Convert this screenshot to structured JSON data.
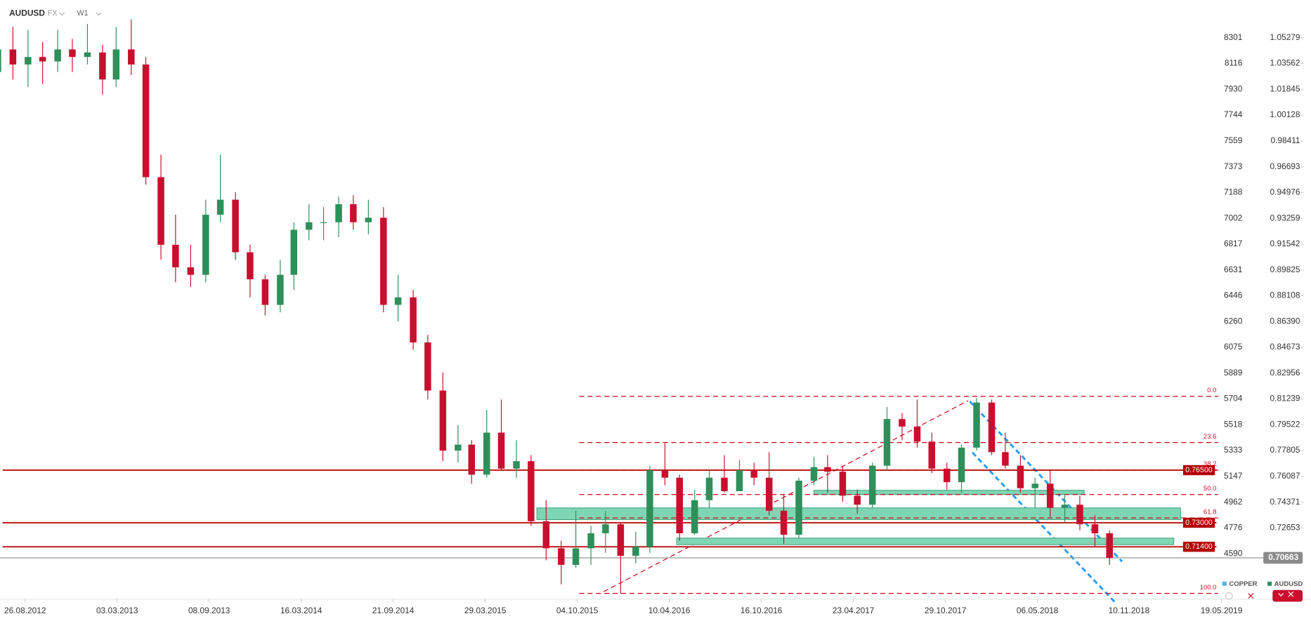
{
  "chart_data": {
    "type": "candlestick",
    "symbol": "AUDUSD",
    "market": "FX",
    "timeframe": "W1",
    "x": [
      "01.07.2012",
      "01.08.2012",
      "01.09.2012",
      "01.10.2012",
      "01.11.2012",
      "01.12.2012",
      "01.01.2013",
      "01.02.2013",
      "01.03.2013",
      "01.04.2013",
      "01.05.2013",
      "01.06.2013",
      "01.07.2013",
      "01.08.2013",
      "01.09.2013",
      "01.10.2013",
      "01.11.2013",
      "01.12.2013",
      "01.01.2014",
      "01.02.2014",
      "01.03.2014",
      "01.04.2014",
      "01.05.2014",
      "01.06.2014",
      "01.07.2014",
      "01.08.2014",
      "01.09.2014",
      "01.10.2014",
      "01.11.2014",
      "01.12.2014",
      "01.01.2015",
      "01.02.2015",
      "01.03.2015",
      "01.04.2015",
      "01.05.2015",
      "01.06.2015",
      "01.07.2015",
      "01.08.2015",
      "01.09.2015",
      "01.10.2015",
      "01.11.2015",
      "01.12.2015",
      "01.01.2016",
      "01.02.2016",
      "01.03.2016",
      "01.04.2016",
      "01.05.2016",
      "01.06.2016",
      "01.07.2016",
      "01.08.2016",
      "01.09.2016",
      "01.10.2016",
      "01.11.2016",
      "01.12.2016",
      "01.01.2017",
      "01.02.2017",
      "01.03.2017",
      "01.04.2017",
      "01.05.2017",
      "01.06.2017",
      "01.07.2017",
      "01.08.2017",
      "01.09.2017",
      "01.10.2017",
      "01.11.2017",
      "01.12.2017",
      "01.01.2018",
      "01.02.2018",
      "01.03.2018",
      "01.04.2018",
      "01.05.2018",
      "01.06.2018",
      "01.07.2018",
      "01.08.2018",
      "01.09.2018",
      "01.10.2018"
    ],
    "open": [
      1.03,
      1.045,
      1.035,
      1.04,
      1.037,
      1.045,
      1.04,
      1.043,
      1.025,
      1.045,
      1.035,
      0.96,
      0.915,
      0.9,
      0.895,
      0.935,
      0.945,
      0.91,
      0.892,
      0.875,
      0.895,
      0.925,
      0.93,
      0.93,
      0.942,
      0.93,
      0.933,
      0.875,
      0.88,
      0.85,
      0.818,
      0.778,
      0.782,
      0.762,
      0.79,
      0.766,
      0.771,
      0.731,
      0.713,
      0.702,
      0.713,
      0.723,
      0.729,
      0.708,
      0.714,
      0.765,
      0.76,
      0.723,
      0.745,
      0.76,
      0.751,
      0.765,
      0.76,
      0.738,
      0.722,
      0.758,
      0.767,
      0.764,
      0.748,
      0.742,
      0.768,
      0.799,
      0.794,
      0.784,
      0.766,
      0.757,
      0.78,
      0.81,
      0.777,
      0.768,
      0.753,
      0.756,
      0.74,
      0.742,
      0.729,
      0.723
    ],
    "high": [
      1.062,
      1.06,
      1.058,
      1.05,
      1.058,
      1.052,
      1.062,
      1.048,
      1.06,
      1.065,
      1.04,
      0.975,
      0.935,
      0.915,
      0.945,
      0.975,
      0.95,
      0.915,
      0.895,
      0.905,
      0.93,
      0.942,
      0.94,
      0.947,
      0.948,
      0.945,
      0.94,
      0.895,
      0.885,
      0.855,
      0.83,
      0.795,
      0.785,
      0.805,
      0.812,
      0.785,
      0.775,
      0.745,
      0.718,
      0.738,
      0.728,
      0.738,
      0.73,
      0.724,
      0.768,
      0.783,
      0.762,
      0.752,
      0.765,
      0.775,
      0.772,
      0.77,
      0.777,
      0.749,
      0.76,
      0.774,
      0.775,
      0.768,
      0.752,
      0.77,
      0.807,
      0.803,
      0.812,
      0.79,
      0.77,
      0.782,
      0.813,
      0.812,
      0.79,
      0.775,
      0.76,
      0.765,
      0.749,
      0.748,
      0.735,
      0.725
    ],
    "low": [
      1.018,
      1.025,
      1.02,
      1.022,
      1.03,
      1.03,
      1.035,
      1.015,
      1.02,
      1.028,
      0.955,
      0.905,
      0.89,
      0.887,
      0.89,
      0.93,
      0.905,
      0.88,
      0.868,
      0.87,
      0.885,
      0.918,
      0.918,
      0.92,
      0.925,
      0.922,
      0.87,
      0.864,
      0.845,
      0.812,
      0.771,
      0.77,
      0.756,
      0.76,
      0.765,
      0.76,
      0.728,
      0.705,
      0.689,
      0.7,
      0.702,
      0.71,
      0.683,
      0.703,
      0.71,
      0.755,
      0.718,
      0.722,
      0.74,
      0.75,
      0.752,
      0.755,
      0.735,
      0.716,
      0.72,
      0.755,
      0.75,
      0.744,
      0.736,
      0.74,
      0.765,
      0.785,
      0.78,
      0.763,
      0.752,
      0.75,
      0.778,
      0.775,
      0.766,
      0.75,
      0.74,
      0.734,
      0.73,
      0.725,
      0.714,
      0.702
    ],
    "close": [
      1.045,
      1.035,
      1.04,
      1.037,
      1.045,
      1.04,
      1.043,
      1.025,
      1.045,
      1.035,
      0.96,
      0.915,
      0.9,
      0.895,
      0.935,
      0.945,
      0.91,
      0.892,
      0.875,
      0.895,
      0.925,
      0.93,
      0.93,
      0.942,
      0.93,
      0.933,
      0.875,
      0.88,
      0.85,
      0.818,
      0.778,
      0.782,
      0.762,
      0.79,
      0.766,
      0.771,
      0.731,
      0.713,
      0.702,
      0.713,
      0.723,
      0.729,
      0.708,
      0.714,
      0.765,
      0.76,
      0.723,
      0.745,
      0.76,
      0.751,
      0.765,
      0.76,
      0.738,
      0.722,
      0.758,
      0.767,
      0.764,
      0.748,
      0.742,
      0.768,
      0.799,
      0.794,
      0.784,
      0.766,
      0.757,
      0.78,
      0.81,
      0.777,
      0.768,
      0.753,
      0.756,
      0.74,
      0.742,
      0.729,
      0.723,
      0.7066
    ],
    "up_color": "#2f8f5b",
    "down_color": "#c8102e",
    "ylim": [
      0.6819,
      1.0779
    ],
    "yticks": [
      1.05279,
      1.03562,
      1.01845,
      1.00128,
      0.98411,
      0.96693,
      0.94976,
      0.93259,
      0.91542,
      0.89825,
      0.88108,
      {
        "value": 0.8639,
        "label": "0.86390"
      },
      0.84673,
      0.82956,
      0.81239,
      0.79522,
      0.77805,
      0.76087,
      0.74371,
      0.72653
    ],
    "secondary_ticks": [
      8301,
      8116,
      7930,
      7744,
      7559,
      7373,
      7188,
      7002,
      6817,
      6631,
      6446,
      6260,
      6075,
      5889,
      5704,
      5518,
      5333,
      5147,
      4962,
      4776
    ],
    "secondary_bottom_tick": 4590,
    "xticks": [
      "26.08.2012",
      "03.03.2013",
      "08.09.2013",
      "16.03.2014",
      "21.09.2014",
      "29.03.2015",
      "04.10.2015",
      "10.04.2016",
      "16.10.2016",
      "23.04.2017",
      "29.10.2017",
      "06.05.2018",
      "10.11.2018",
      "19.05.2019"
    ],
    "levels": [
      {
        "value": 0.765,
        "label": "0.76500"
      },
      {
        "value": 0.73,
        "label": "0.73000"
      },
      {
        "value": 0.714,
        "label": "0.71400"
      }
    ],
    "level_color": "#b40000",
    "fib_levels": [
      {
        "label": "0.0",
        "price": 0.8141
      },
      {
        "label": "23.6",
        "price": 0.7834
      },
      {
        "label": "38.2",
        "price": 0.765
      },
      {
        "label": "50.0",
        "price": 0.7488
      },
      {
        "label": "61.8",
        "price": 0.7332
      },
      {
        "label": "100.0",
        "price": 0.683
      }
    ],
    "fib_from": "08.10.2015",
    "fib_to": "12.05.2019",
    "zones": [
      {
        "from": "13.07.2015",
        "to": "24.02.2019",
        "low": 0.7321,
        "high": 0.7399
      },
      {
        "from": "25.04.2016",
        "to": "10.02.2019",
        "low": 0.7154,
        "high": 0.7198
      },
      {
        "from": "01.02.2017",
        "to": "10.08.2018",
        "low": 0.7488,
        "high": 0.7516
      }
    ],
    "zone_color": "#7fd6b4",
    "last_price": 0.70663,
    "legend": [
      {
        "name": "COPPER",
        "color": "#4fb3e8"
      },
      {
        "name": "AUDUSD",
        "color": "#2f8f5b"
      }
    ]
  }
}
